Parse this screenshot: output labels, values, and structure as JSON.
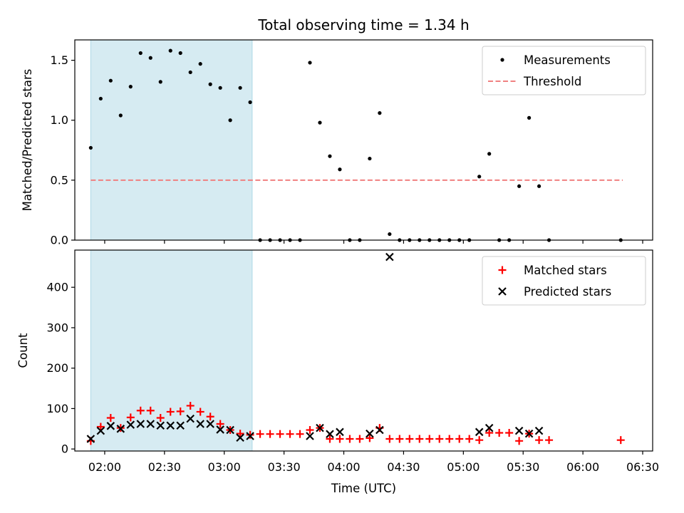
{
  "figure": {
    "title": "Total observing time = 1.34 h",
    "xlabel": "Time (UTC)"
  },
  "chart_data": [
    {
      "type": "scatter",
      "ylabel": "Matched/Predicted stars",
      "ylim": [
        0,
        1.67
      ],
      "yticks": [
        0.0,
        0.5,
        1.0,
        1.5
      ],
      "ytick_labels": [
        "0.0",
        "0.5",
        "1.0",
        "1.5"
      ],
      "xlim": [
        "01:45",
        "06:35"
      ],
      "xticks": [
        "02:00",
        "02:30",
        "03:00",
        "03:30",
        "04:00",
        "04:30",
        "05:00",
        "05:30",
        "06:00",
        "06:30"
      ],
      "shaded_span": {
        "start": "01:53",
        "end": "03:14",
        "color": "#add8e6"
      },
      "legend": {
        "position": "upper right",
        "entries": [
          "Measurements",
          "Threshold"
        ]
      },
      "threshold": {
        "name": "Threshold",
        "value": 0.5,
        "x_start": "01:53",
        "x_end": "06:20",
        "color": "#f08080"
      },
      "series": [
        {
          "name": "Measurements",
          "marker": "dot",
          "color": "#000000",
          "x": [
            "01:53",
            "01:58",
            "02:03",
            "02:08",
            "02:13",
            "02:18",
            "02:23",
            "02:28",
            "02:33",
            "02:38",
            "02:43",
            "02:48",
            "02:53",
            "02:58",
            "03:03",
            "03:08",
            "03:13",
            "03:18",
            "03:23",
            "03:28",
            "03:33",
            "03:38",
            "03:43",
            "03:48",
            "03:53",
            "03:58",
            "04:03",
            "04:08",
            "04:13",
            "04:18",
            "04:23",
            "04:28",
            "04:33",
            "04:38",
            "04:43",
            "04:48",
            "04:53",
            "04:58",
            "05:03",
            "05:08",
            "05:13",
            "05:18",
            "05:23",
            "05:28",
            "05:33",
            "05:38",
            "05:43",
            "06:19"
          ],
          "values": [
            0.77,
            1.18,
            1.33,
            1.04,
            1.28,
            1.56,
            1.52,
            1.32,
            1.58,
            1.56,
            1.4,
            1.47,
            1.3,
            1.27,
            1.0,
            1.27,
            1.15,
            0,
            0,
            0,
            0,
            0,
            1.48,
            0.98,
            0.7,
            0.59,
            0,
            0,
            0.68,
            1.06,
            0.05,
            0,
            0,
            0,
            0,
            0,
            0,
            0,
            0,
            0.53,
            0.72,
            0,
            0,
            0.45,
            1.02,
            0.45,
            0,
            0
          ]
        }
      ]
    },
    {
      "type": "scatter",
      "ylabel": "Count",
      "ylim": [
        -5,
        492
      ],
      "yticks": [
        0,
        100,
        200,
        300,
        400
      ],
      "ytick_labels": [
        "0",
        "100",
        "200",
        "300",
        "400"
      ],
      "xlim": [
        "01:45",
        "06:35"
      ],
      "xticks": [
        "02:00",
        "02:30",
        "03:00",
        "03:30",
        "04:00",
        "04:30",
        "05:00",
        "05:30",
        "06:00",
        "06:30"
      ],
      "xtick_labels": [
        "02:00",
        "02:30",
        "03:00",
        "03:30",
        "04:00",
        "04:30",
        "05:00",
        "05:30",
        "06:00",
        "06:30"
      ],
      "shaded_span": {
        "start": "01:53",
        "end": "03:14",
        "color": "#add8e6"
      },
      "legend": {
        "position": "upper right",
        "entries": [
          "Matched stars",
          "Predicted stars"
        ]
      },
      "series": [
        {
          "name": "Matched stars",
          "marker": "plus",
          "color": "#ff0000",
          "x": [
            "01:53",
            "01:58",
            "02:03",
            "02:08",
            "02:13",
            "02:18",
            "02:23",
            "02:28",
            "02:33",
            "02:38",
            "02:43",
            "02:48",
            "02:53",
            "02:58",
            "03:03",
            "03:08",
            "03:13",
            "03:18",
            "03:23",
            "03:28",
            "03:33",
            "03:38",
            "03:43",
            "03:48",
            "03:53",
            "03:58",
            "04:03",
            "04:08",
            "04:13",
            "04:18",
            "04:23",
            "04:28",
            "04:33",
            "04:38",
            "04:43",
            "04:48",
            "04:53",
            "04:58",
            "05:03",
            "05:08",
            "05:13",
            "05:18",
            "05:23",
            "05:28",
            "05:33",
            "05:38",
            "05:43",
            "06:19"
          ],
          "values": [
            20,
            55,
            77,
            52,
            78,
            95,
            95,
            77,
            92,
            93,
            107,
            92,
            80,
            62,
            47,
            38,
            35,
            37,
            37,
            37,
            37,
            37,
            47,
            52,
            25,
            25,
            25,
            25,
            27,
            52,
            25,
            25,
            25,
            25,
            25,
            25,
            25,
            25,
            25,
            22,
            40,
            40,
            40,
            20,
            38,
            22,
            22,
            22
          ]
        },
        {
          "name": "Predicted stars",
          "marker": "x",
          "color": "#000000",
          "x": [
            "01:53",
            "01:58",
            "02:03",
            "02:08",
            "02:13",
            "02:18",
            "02:23",
            "02:28",
            "02:33",
            "02:38",
            "02:43",
            "02:48",
            "02:53",
            "02:58",
            "03:03",
            "03:08",
            "03:13",
            "03:43",
            "03:48",
            "03:53",
            "03:58",
            "04:13",
            "04:18",
            "04:23",
            "05:08",
            "05:13",
            "05:28",
            "05:33",
            "05:38"
          ],
          "values": [
            25,
            45,
            57,
            50,
            60,
            62,
            62,
            58,
            58,
            58,
            75,
            62,
            62,
            48,
            47,
            28,
            32,
            32,
            52,
            37,
            42,
            38,
            47,
            475,
            42,
            52,
            45,
            38,
            45
          ]
        }
      ]
    }
  ]
}
